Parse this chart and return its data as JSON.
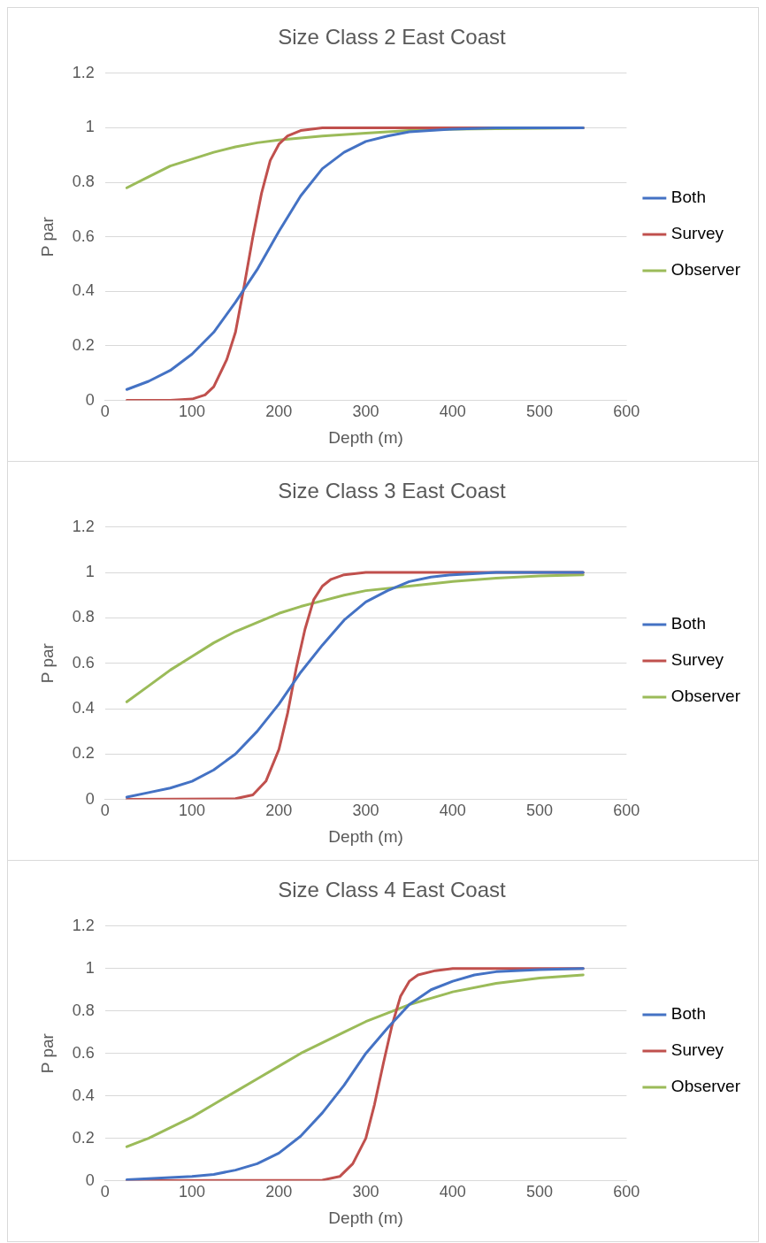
{
  "chart_data": [
    {
      "type": "line",
      "title": "Size Class 2 East Coast",
      "xlabel": "Depth (m)",
      "ylabel": "P par",
      "xlim": [
        0,
        600
      ],
      "xticks": [
        0,
        100,
        200,
        300,
        400,
        500,
        600
      ],
      "ylim": [
        0,
        1.2
      ],
      "yticks": [
        0,
        0.2,
        0.4,
        0.6,
        0.8,
        1,
        1.2
      ],
      "grid": "y",
      "legend": "right",
      "marker": "none",
      "line_style": "solid",
      "series": [
        {
          "name": "Both",
          "color": "#4472c4",
          "x": [
            25,
            50,
            75,
            100,
            125,
            150,
            175,
            200,
            225,
            250,
            275,
            300,
            325,
            350,
            400,
            450,
            550
          ],
          "values": [
            0.04,
            0.07,
            0.11,
            0.17,
            0.25,
            0.36,
            0.48,
            0.62,
            0.75,
            0.85,
            0.91,
            0.95,
            0.97,
            0.985,
            0.995,
            1,
            1
          ]
        },
        {
          "name": "Survey",
          "color": "#c0504d",
          "x": [
            25,
            75,
            100,
            115,
            125,
            140,
            150,
            160,
            170,
            180,
            190,
            200,
            210,
            225,
            250,
            550
          ],
          "values": [
            0,
            0,
            0.005,
            0.02,
            0.05,
            0.15,
            0.25,
            0.42,
            0.6,
            0.76,
            0.88,
            0.94,
            0.97,
            0.99,
            1,
            1
          ]
        },
        {
          "name": "Observer",
          "color": "#9bbb59",
          "x": [
            25,
            50,
            75,
            100,
            125,
            150,
            175,
            200,
            250,
            300,
            350,
            400,
            550
          ],
          "values": [
            0.78,
            0.82,
            0.86,
            0.885,
            0.91,
            0.93,
            0.945,
            0.955,
            0.97,
            0.98,
            0.99,
            0.995,
            1
          ]
        }
      ]
    },
    {
      "type": "line",
      "title": "Size Class 3 East Coast",
      "xlabel": "Depth (m)",
      "ylabel": "P par",
      "xlim": [
        0,
        600
      ],
      "xticks": [
        0,
        100,
        200,
        300,
        400,
        500,
        600
      ],
      "ylim": [
        0,
        1.2
      ],
      "yticks": [
        0,
        0.2,
        0.4,
        0.6,
        0.8,
        1,
        1.2
      ],
      "grid": "y",
      "legend": "right",
      "marker": "none",
      "line_style": "solid",
      "series": [
        {
          "name": "Both",
          "color": "#4472c4",
          "x": [
            25,
            50,
            75,
            100,
            125,
            150,
            175,
            200,
            225,
            250,
            275,
            300,
            325,
            350,
            375,
            400,
            450,
            550
          ],
          "values": [
            0.01,
            0.03,
            0.05,
            0.08,
            0.13,
            0.2,
            0.3,
            0.42,
            0.56,
            0.68,
            0.79,
            0.87,
            0.92,
            0.96,
            0.98,
            0.99,
            1,
            1
          ]
        },
        {
          "name": "Survey",
          "color": "#c0504d",
          "x": [
            25,
            150,
            170,
            185,
            200,
            210,
            220,
            230,
            240,
            250,
            260,
            275,
            300,
            550
          ],
          "values": [
            0,
            0.003,
            0.02,
            0.08,
            0.22,
            0.38,
            0.58,
            0.75,
            0.88,
            0.94,
            0.97,
            0.99,
            1,
            1
          ]
        },
        {
          "name": "Observer",
          "color": "#9bbb59",
          "x": [
            25,
            50,
            75,
            100,
            125,
            150,
            175,
            200,
            225,
            250,
            275,
            300,
            350,
            400,
            450,
            500,
            550
          ],
          "values": [
            0.43,
            0.5,
            0.57,
            0.63,
            0.69,
            0.74,
            0.78,
            0.82,
            0.85,
            0.875,
            0.9,
            0.92,
            0.94,
            0.96,
            0.975,
            0.985,
            0.99
          ]
        }
      ]
    },
    {
      "type": "line",
      "title": "Size Class 4 East Coast",
      "xlabel": "Depth (m)",
      "ylabel": "P par",
      "xlim": [
        0,
        600
      ],
      "xticks": [
        0,
        100,
        200,
        300,
        400,
        500,
        600
      ],
      "ylim": [
        0,
        1.2
      ],
      "yticks": [
        0,
        0.2,
        0.4,
        0.6,
        0.8,
        1,
        1.2
      ],
      "grid": "y",
      "legend": "right",
      "marker": "none",
      "line_style": "solid",
      "series": [
        {
          "name": "Both",
          "color": "#4472c4",
          "x": [
            25,
            50,
            100,
            125,
            150,
            175,
            200,
            225,
            250,
            275,
            300,
            325,
            350,
            375,
            400,
            425,
            450,
            500,
            550
          ],
          "values": [
            0.005,
            0.01,
            0.02,
            0.03,
            0.05,
            0.08,
            0.13,
            0.21,
            0.32,
            0.45,
            0.6,
            0.72,
            0.83,
            0.9,
            0.94,
            0.97,
            0.985,
            0.995,
            1
          ]
        },
        {
          "name": "Survey",
          "color": "#c0504d",
          "x": [
            25,
            250,
            270,
            285,
            300,
            310,
            320,
            330,
            340,
            350,
            360,
            380,
            400,
            550
          ],
          "values": [
            0,
            0.003,
            0.02,
            0.08,
            0.2,
            0.36,
            0.55,
            0.73,
            0.87,
            0.94,
            0.97,
            0.99,
            1,
            1
          ]
        },
        {
          "name": "Observer",
          "color": "#9bbb59",
          "x": [
            25,
            50,
            75,
            100,
            125,
            150,
            175,
            200,
            225,
            250,
            275,
            300,
            325,
            350,
            375,
            400,
            450,
            500,
            550
          ],
          "values": [
            0.16,
            0.2,
            0.25,
            0.3,
            0.36,
            0.42,
            0.48,
            0.54,
            0.6,
            0.65,
            0.7,
            0.75,
            0.79,
            0.83,
            0.86,
            0.89,
            0.93,
            0.955,
            0.97
          ]
        }
      ]
    }
  ]
}
